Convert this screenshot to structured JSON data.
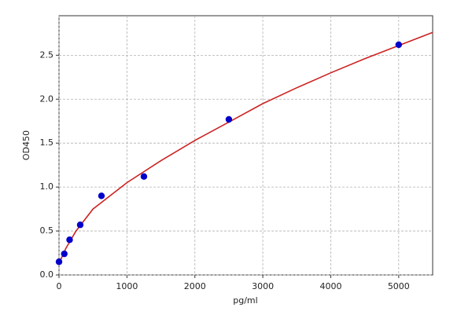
{
  "chart_data": {
    "type": "scatter",
    "xlabel": "pg/ml",
    "ylabel": "OD450",
    "xlim": [
      0,
      5500
    ],
    "ylim": [
      0,
      2.95
    ],
    "xticks": [
      0,
      1000,
      2000,
      3000,
      4000,
      5000
    ],
    "yticks": [
      {
        "value": 0,
        "label": "0.0"
      },
      {
        "value": 0.5,
        "label": "0.5"
      },
      {
        "value": 1,
        "label": "1.0"
      },
      {
        "value": 1.5,
        "label": "1.5"
      },
      {
        "value": 2,
        "label": "2.0"
      },
      {
        "value": 2.5,
        "label": "2.5"
      }
    ],
    "grid": true,
    "series": [
      {
        "color": "#0000cc",
        "x": [
          0,
          78,
          156,
          312,
          625,
          1250,
          2500,
          5000
        ],
        "values": [
          0.15,
          0.24,
          0.4,
          0.57,
          0.9,
          1.12,
          1.77,
          2.62
        ]
      },
      {
        "type": "line",
        "color": "#cc2222",
        "x": [
          0,
          100,
          250,
          500,
          1000,
          1500,
          2000,
          2500,
          3000,
          3500,
          4000,
          4500,
          5000,
          5500
        ],
        "values": [
          0.13,
          0.3,
          0.5,
          0.75,
          1.05,
          1.3,
          1.53,
          1.74,
          1.95,
          2.13,
          2.3,
          2.46,
          2.61,
          2.76
        ]
      }
    ]
  }
}
